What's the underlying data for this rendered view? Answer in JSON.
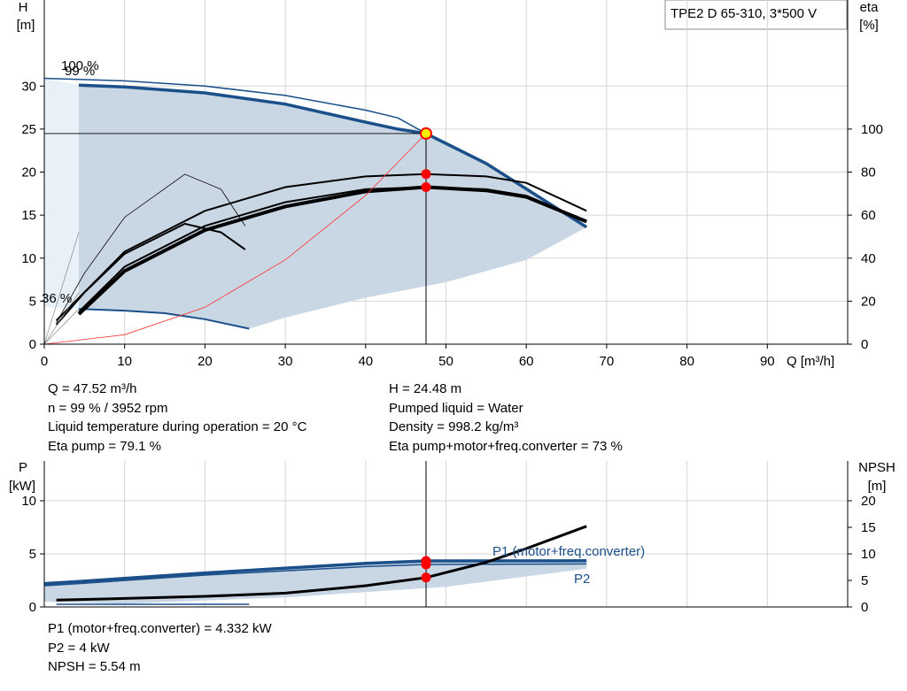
{
  "title_box": "TPE2 D 65-310, 3*500 V",
  "colors": {
    "curve": "#1b4f8a",
    "area": "#c9d6e4",
    "area_light": "#e8f0f8",
    "eta": "#000000",
    "system": "#ff3333",
    "point": "#ff0000",
    "dutypoint": "#ffee00"
  },
  "upper": {
    "y_left_label": [
      "H",
      "[m]"
    ],
    "y_right_label": [
      "eta",
      "[%]"
    ],
    "x_label": "Q [m³/h]",
    "x_ticks": [
      0,
      10,
      20,
      30,
      40,
      50,
      60,
      70,
      80,
      90
    ],
    "h_ticks": [
      0,
      5,
      10,
      15,
      20,
      25,
      30
    ],
    "eta_ticks": [
      0,
      20,
      40,
      60,
      80,
      100
    ],
    "annotations": [
      "100 %",
      "99 %",
      "36 %"
    ]
  },
  "lower": {
    "y_left_label": [
      "P",
      "[kW]"
    ],
    "y_right_label": [
      "NPSH",
      "[m]"
    ],
    "p_ticks": [
      0,
      5,
      10
    ],
    "npsh_ticks": [
      0,
      5,
      10,
      15,
      20
    ],
    "series_labels": [
      "P1 (motor+freq.converter)",
      "P2"
    ]
  },
  "info_left": [
    "Q = 47.52 m³/h",
    "n = 99 % / 3952 rpm",
    "Liquid temperature during operation = 20 °C",
    "Eta pump = 79.1 %"
  ],
  "info_right": [
    "H = 24.48 m",
    "Pumped liquid = Water",
    "Density = 998.2 kg/m³",
    "Eta pump+motor+freq.converter = 73 %"
  ],
  "info_bottom": [
    "P1 (motor+freq.converter) = 4.332 kW",
    "P2 = 4 kW",
    "NPSH = 5.54 m"
  ],
  "chart_data": [
    {
      "type": "line",
      "x_unit": "m³/h",
      "xlim": [
        0,
        100
      ],
      "ylim_left": [
        0,
        40
      ],
      "ylim_right": [
        0,
        160
      ],
      "duty_point": {
        "q": 47.52,
        "h": 24.48,
        "eta_pump": 79.1,
        "eta_total": 73
      },
      "series": [
        {
          "name": "100 %",
          "axis": "H",
          "x": [
            0,
            10,
            20,
            30,
            40,
            44,
            47.52,
            55,
            67.5
          ],
          "y": [
            30.9,
            30.6,
            30.0,
            28.9,
            27.2,
            26.3,
            24.48,
            21.0,
            13.6
          ]
        },
        {
          "name": "99 %",
          "axis": "H",
          "x": [
            4.3,
            10,
            20,
            30,
            40,
            44,
            47.52,
            55,
            67.5
          ],
          "y": [
            30.1,
            29.9,
            29.2,
            27.9,
            25.8,
            25.0,
            24.48,
            21.0,
            13.6
          ]
        },
        {
          "name": "36 %",
          "axis": "H",
          "x": [
            4.3,
            10,
            15,
            20,
            25.5
          ],
          "y": [
            4.1,
            3.9,
            3.6,
            2.9,
            1.8
          ]
        },
        {
          "axis": "eta",
          "x": [
            1.5,
            10,
            20,
            30,
            40,
            47.52,
            55,
            60,
            67.5
          ],
          "y": [
            11,
            43,
            62,
            73,
            78,
            79.1,
            78,
            75,
            62
          ]
        },
        {
          "axis": "eta",
          "x": [
            4.3,
            10,
            20,
            30,
            40,
            47.52,
            55,
            60,
            67.5
          ],
          "y": [
            15,
            36,
            55,
            66,
            72,
            73,
            72,
            69,
            57
          ]
        },
        {
          "axis": "eta",
          "x": [
            4.3,
            10,
            20,
            30,
            40,
            47.52,
            55,
            60,
            67.5
          ],
          "y": [
            14,
            34,
            53,
            64,
            71,
            73,
            71.5,
            68.5,
            57
          ]
        },
        {
          "axis": "eta",
          "x": [
            1.5,
            5,
            10,
            17.5,
            22,
            25
          ],
          "y": [
            10,
            33,
            59,
            79,
            72,
            55
          ]
        },
        {
          "axis": "eta",
          "x": [
            1.5,
            5,
            10,
            17.5,
            22,
            25
          ],
          "y": [
            9,
            24,
            42,
            56,
            52,
            44
          ]
        },
        {
          "axis": "H",
          "x": [
            0,
            10,
            20,
            30,
            40,
            47.52
          ],
          "y": [
            0,
            1.1,
            4.3,
            9.8,
            17.3,
            24.48
          ]
        }
      ]
    },
    {
      "type": "line",
      "x_unit": "m³/h",
      "xlim": [
        0,
        100
      ],
      "ylim_left": [
        0,
        13.75
      ],
      "ylim_right": [
        0,
        27.5
      ],
      "series": [
        {
          "name": "P1 (motor+freq.converter)",
          "axis": "P",
          "x": [
            0,
            4.3,
            20,
            40,
            47.52,
            67.5
          ],
          "y": [
            2.2,
            2.4,
            3.2,
            4.1,
            4.332,
            4.35
          ]
        },
        {
          "name": "P2",
          "axis": "P",
          "x": [
            0,
            4.3,
            20,
            40,
            47.52,
            67.5
          ],
          "y": [
            2.0,
            2.2,
            3.0,
            3.8,
            4.0,
            4.05
          ]
        },
        {
          "axis": "NPSH",
          "x": [
            1.5,
            10,
            20,
            30,
            40,
            47.52,
            55,
            60,
            67.5
          ],
          "y": [
            1.3,
            1.6,
            2.0,
            2.6,
            4.0,
            5.54,
            8.4,
            11.0,
            15.2
          ]
        }
      ]
    }
  ]
}
